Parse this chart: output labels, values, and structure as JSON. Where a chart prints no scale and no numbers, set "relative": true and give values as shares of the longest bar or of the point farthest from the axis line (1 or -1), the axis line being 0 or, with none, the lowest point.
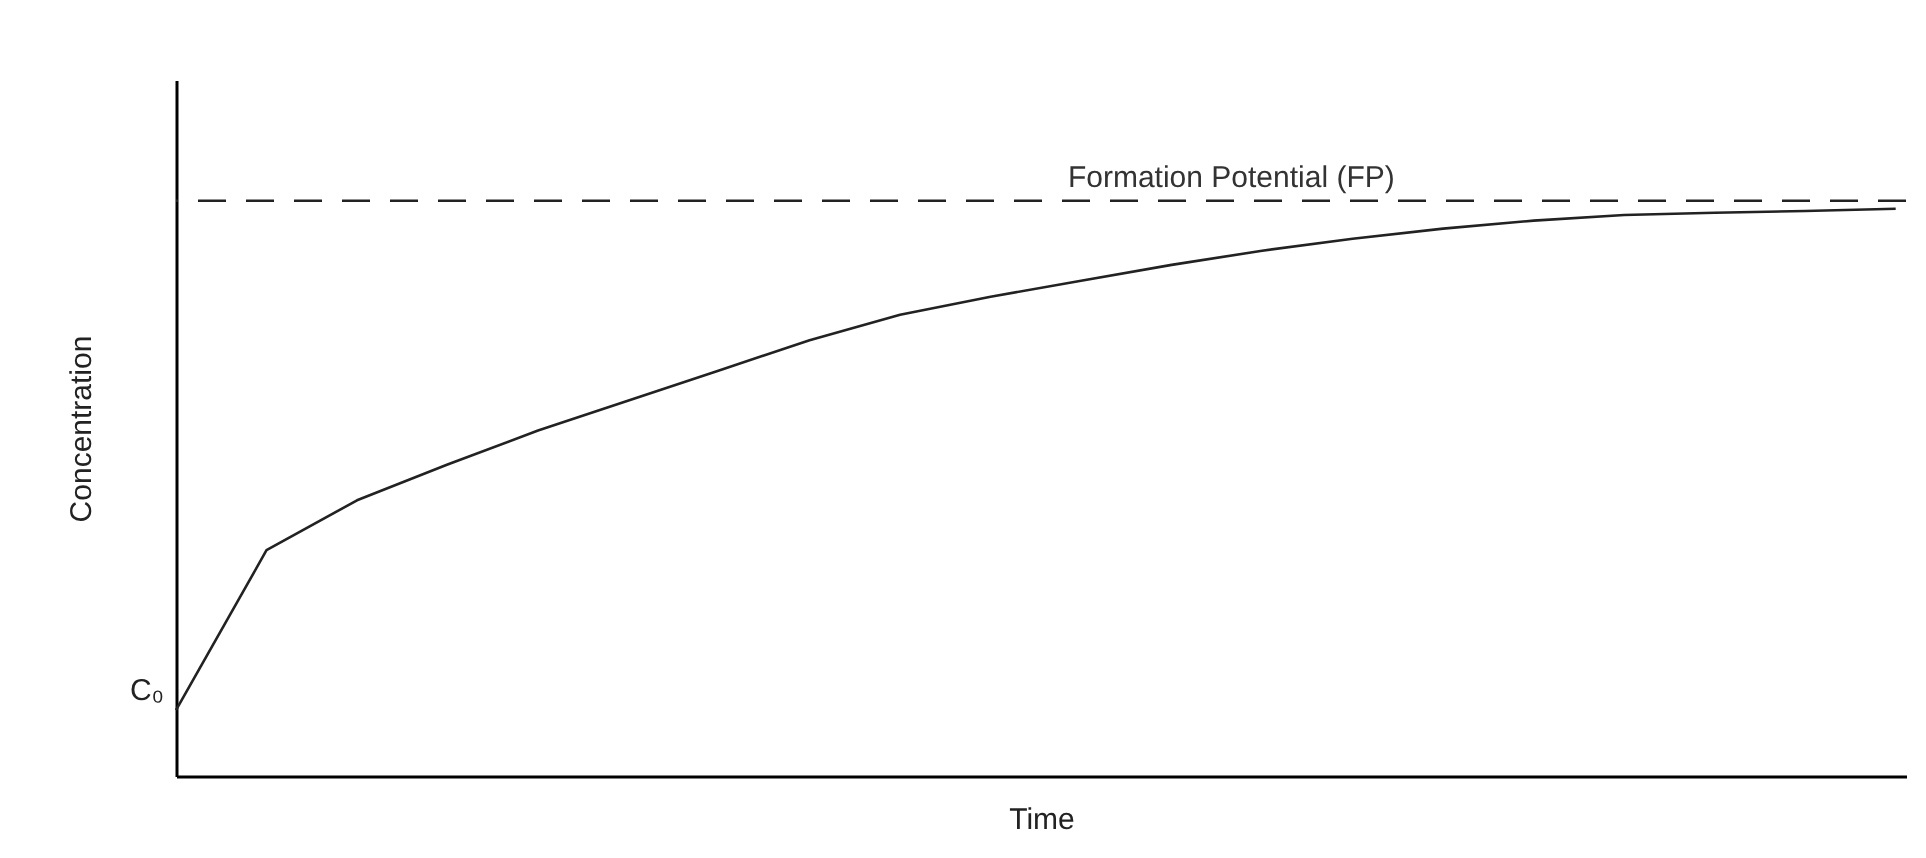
{
  "chart_data": {
    "type": "line",
    "relative": true,
    "xlabel": "Time",
    "ylabel": "Concentration",
    "categories": [
      null,
      null,
      null,
      null,
      null,
      null,
      null,
      null,
      null,
      null,
      null,
      null,
      null,
      null,
      null,
      null,
      null,
      null,
      null,
      null
    ],
    "series": [
      {
        "color": "#222222",
        "values": [
          0.116,
          0.398,
          0.486,
          0.549,
          0.609,
          0.662,
          0.715,
          0.768,
          0.813,
          0.845,
          0.873,
          0.901,
          0.926,
          0.947,
          0.965,
          0.979,
          0.989,
          0.993,
          0.996,
          1.0
        ]
      }
    ],
    "ref_lines": [
      {
        "axis": "y",
        "value": 1.014,
        "label": "Formation Potential (FP)",
        "color": "#222222",
        "line_style": "dashed"
      }
    ],
    "annotations": [
      "C₀"
    ],
    "grid": false,
    "marker": "none",
    "line_style": "solid",
    "tick_labels": false
  }
}
